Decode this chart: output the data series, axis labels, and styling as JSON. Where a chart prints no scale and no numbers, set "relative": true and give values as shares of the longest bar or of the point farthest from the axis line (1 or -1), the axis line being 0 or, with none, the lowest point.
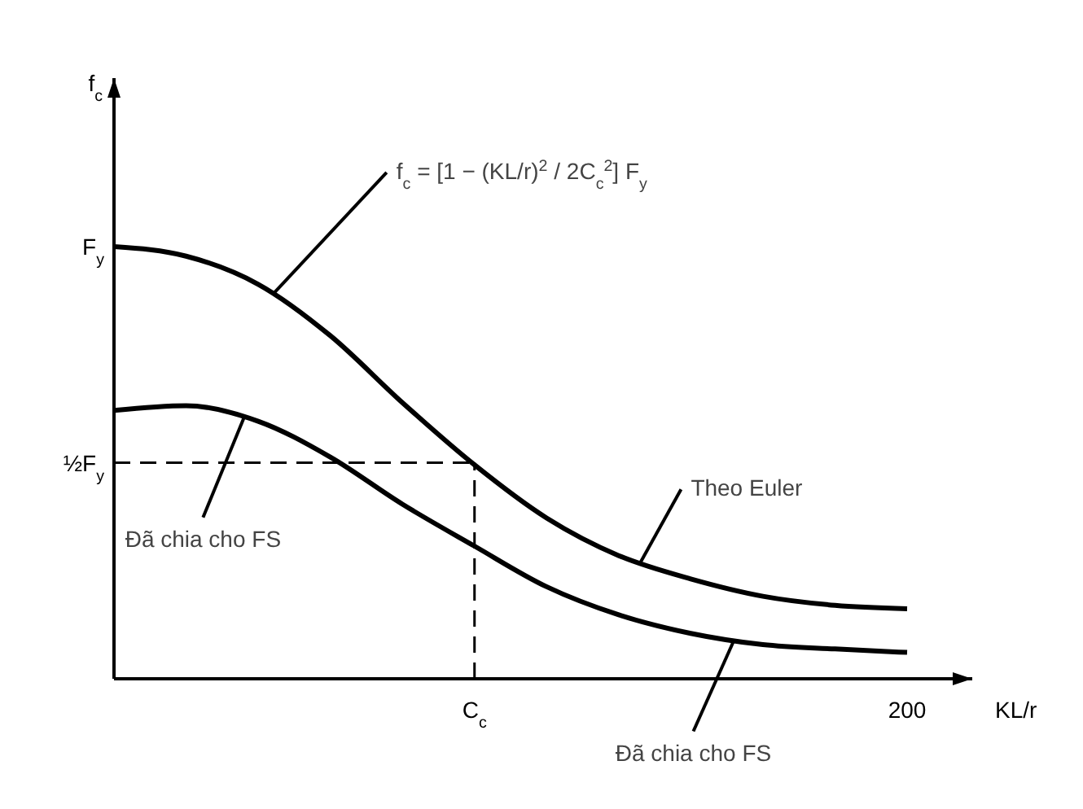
{
  "chart_data": {
    "type": "line",
    "relative": true,
    "xlabel": "KL/r",
    "categories": [
      null,
      null,
      null,
      null,
      null,
      "C$_{c}$",
      null,
      null,
      null,
      null,
      null,
      "200"
    ],
    "grid": false,
    "marker": "none",
    "line_style": "solid",
    "series": [
      {
        "color": "#000000",
        "values": [
          1.0,
          0.978,
          0.913,
          0.794,
          0.639,
          0.495,
          0.372,
          0.285,
          0.231,
          0.191,
          0.17,
          0.162
        ]
      },
      {
        "color": "#000000",
        "values": [
          0.621,
          0.632,
          0.596,
          0.513,
          0.404,
          0.307,
          0.213,
          0.148,
          0.105,
          0.079,
          0.069,
          0.061
        ]
      }
    ],
    "ref_lines": [
      {
        "axis": "y",
        "value": 0.5,
        "label": "½F$_{y}$",
        "line_style": "dashed",
        "color": "#000000"
      },
      {
        "axis": "x",
        "value": "C$_{c}$",
        "line_style": "dashed",
        "color": "#000000"
      }
    ],
    "annotations": [
      "F$_{y}$",
      "f$_{c}$ = [1 − (KL/r)$^{2}$ / 2C$_{c}$$^{2}$] F$_{y}$",
      "Đã chia cho FS",
      "Theo Euler",
      "Đã chia cho FS",
      "f$_{c}$"
    ]
  }
}
